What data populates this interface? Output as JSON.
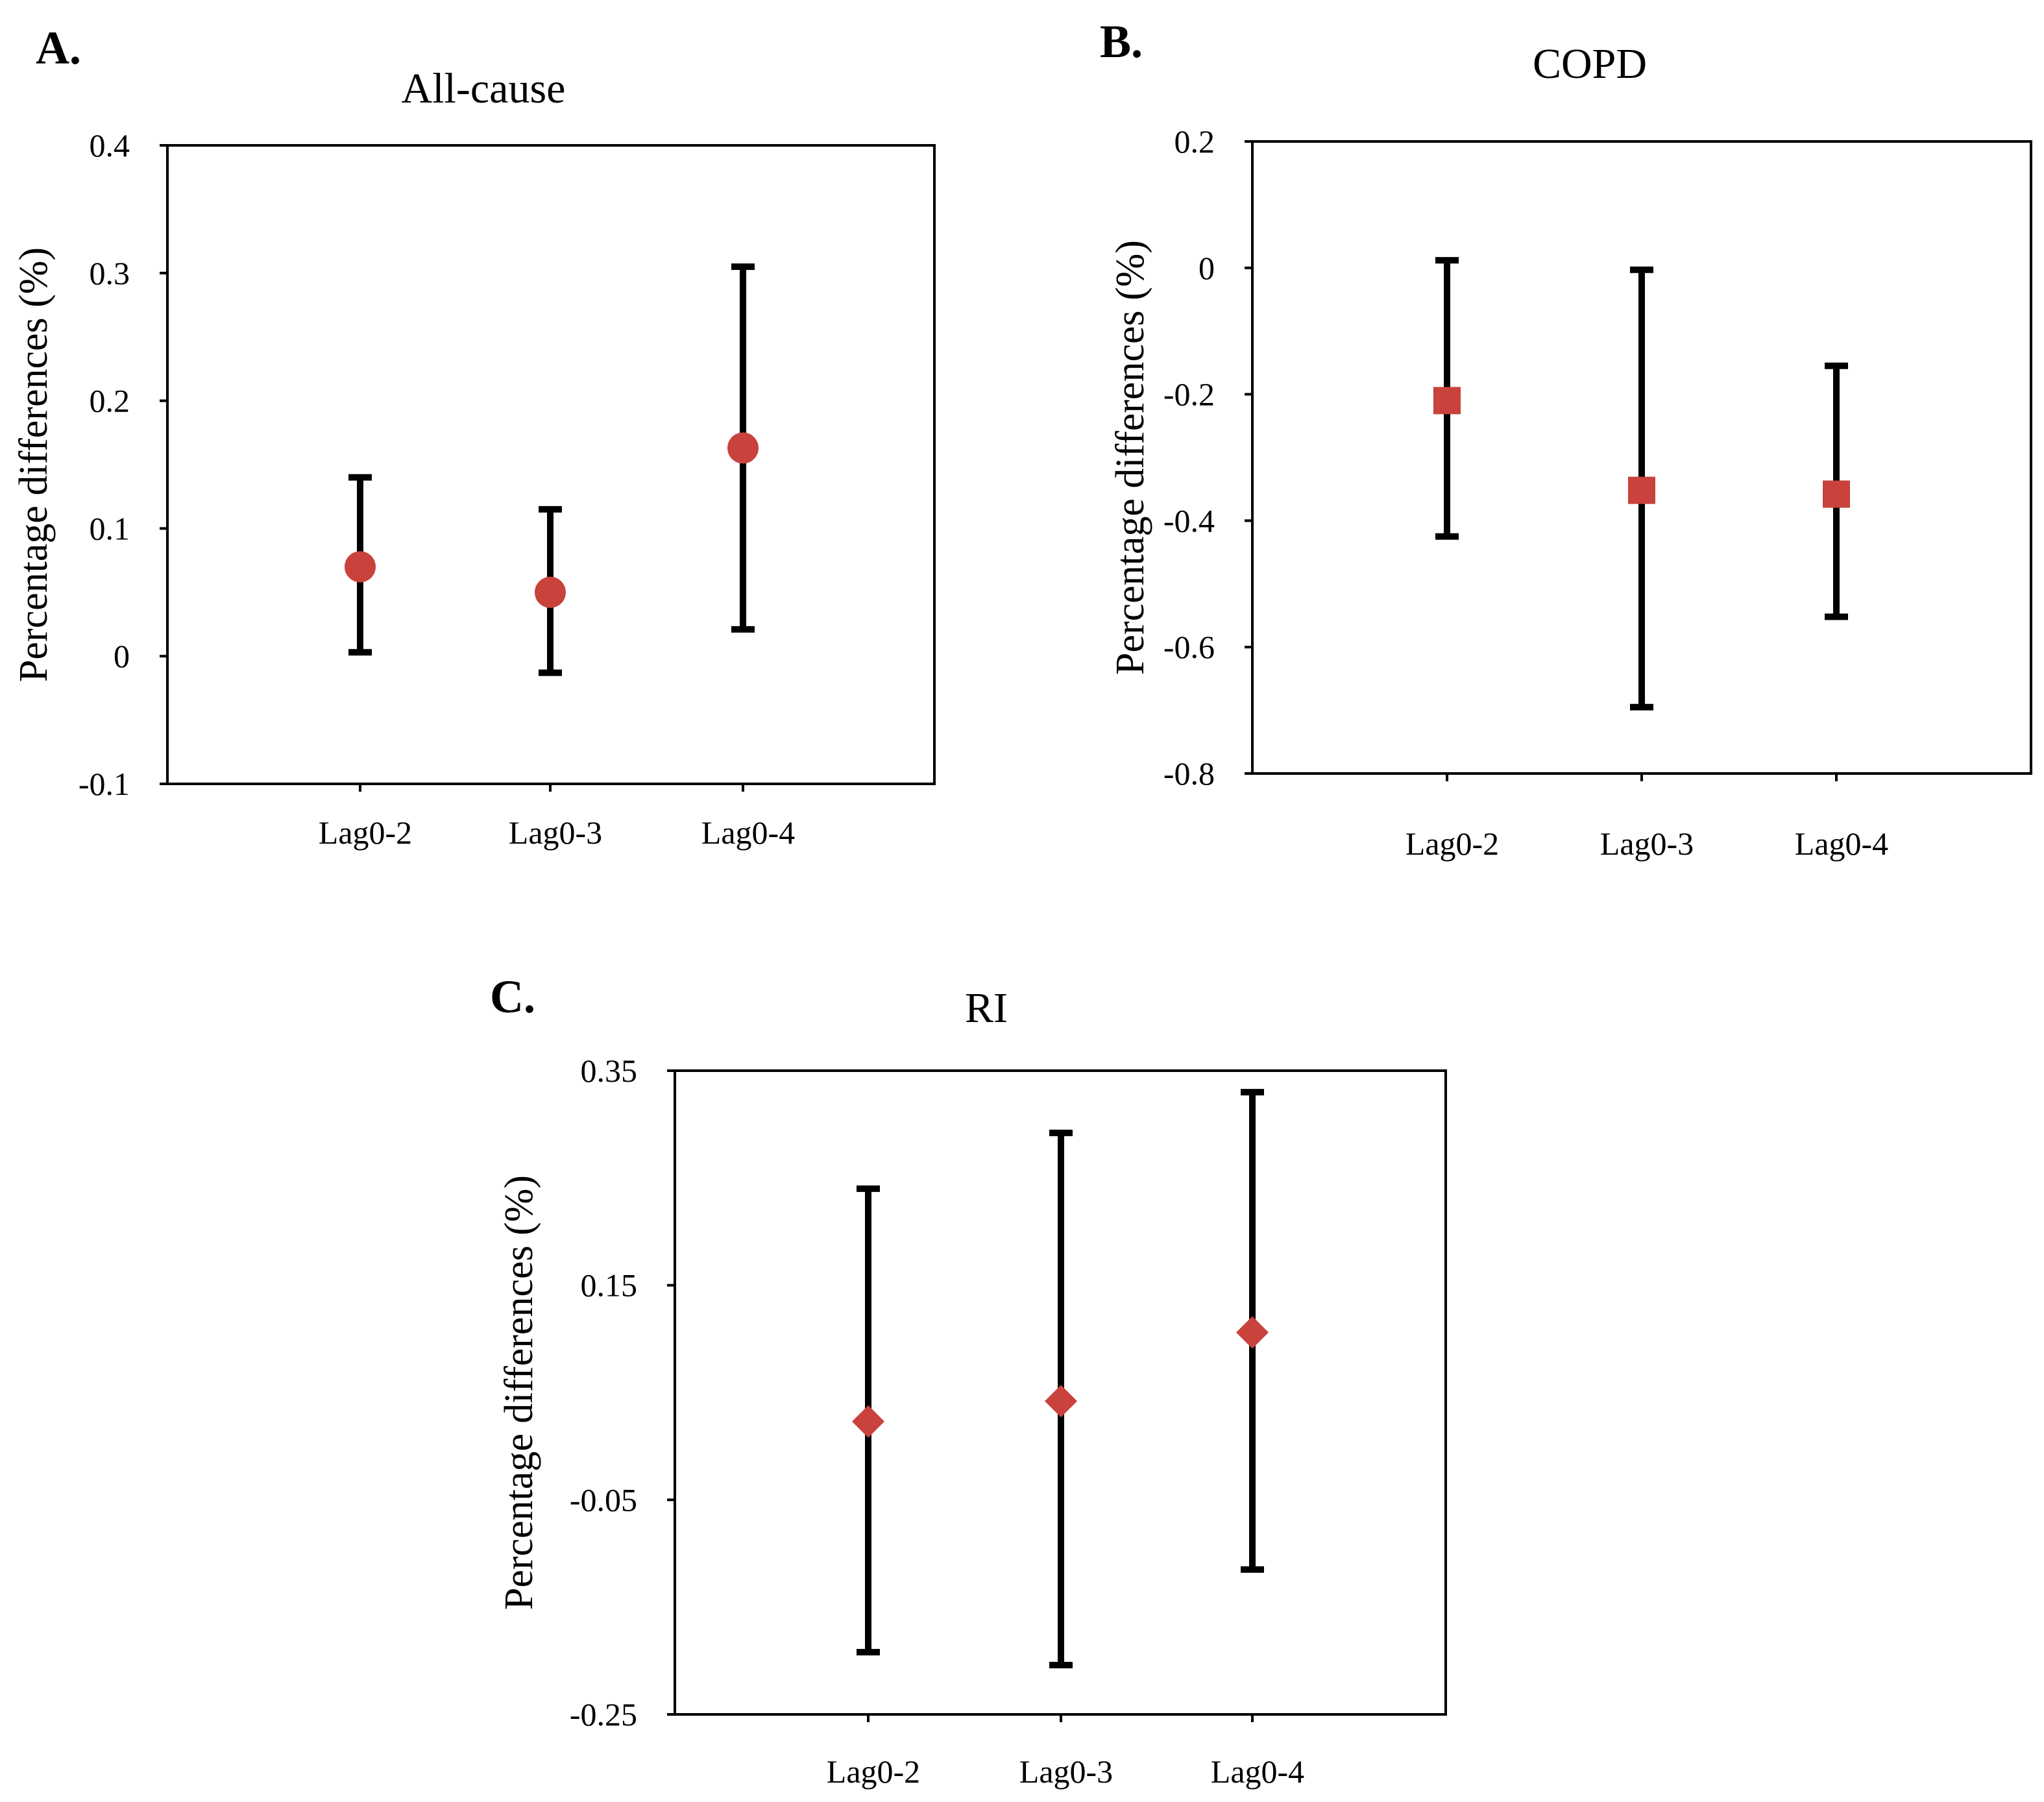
{
  "chart_data": [
    {
      "panel": "A.",
      "type": "errorbar",
      "title": "All-cause",
      "ylabel": "Percentage differences (%)",
      "xlabel": "",
      "categories": [
        "Lag0-2",
        "Lag0-3",
        "Lag0-4"
      ],
      "estimates": [
        0.07,
        0.05,
        0.163
      ],
      "lower": [
        0.003,
        -0.013,
        0.021
      ],
      "upper": [
        0.14,
        0.115,
        0.305
      ],
      "ylim": [
        -0.1,
        0.4
      ],
      "yticks": [
        -0.1,
        0,
        0.1,
        0.2,
        0.3,
        0.4
      ],
      "ytick_labels": [
        "-0.1",
        "0",
        "0.1",
        "0.2",
        "0.3",
        "0.4"
      ],
      "marker": "circle",
      "marker_color": "#C9423C"
    },
    {
      "panel": "B.",
      "type": "errorbar",
      "title": "COPD",
      "ylabel": "Percentage differences (%)",
      "xlabel": "",
      "categories": [
        "Lag0-2",
        "Lag0-3",
        "Lag0-4"
      ],
      "estimates": [
        -0.21,
        -0.352,
        -0.358
      ],
      "lower": [
        -0.425,
        -0.695,
        -0.552
      ],
      "upper": [
        0.012,
        -0.003,
        -0.155
      ],
      "ylim": [
        -0.8,
        0.2
      ],
      "yticks": [
        -0.8,
        -0.6,
        -0.4,
        -0.2,
        0,
        0.2
      ],
      "ytick_labels": [
        "-0.8",
        "-0.6",
        "-0.4",
        "-0.2",
        "0",
        "0.2"
      ],
      "marker": "square",
      "marker_color": "#C9423C"
    },
    {
      "panel": "C.",
      "type": "errorbar",
      "title": "RI",
      "ylabel": "Percentage differences (%)",
      "xlabel": "",
      "categories": [
        "Lag0-2",
        "Lag0-3",
        "Lag0-4"
      ],
      "estimates": [
        0.023,
        0.042,
        0.106
      ],
      "lower": [
        -0.192,
        -0.204,
        -0.115
      ],
      "upper": [
        0.24,
        0.292,
        0.33
      ],
      "ylim": [
        -0.25,
        0.35
      ],
      "yticks": [
        -0.25,
        -0.05,
        0.15,
        0.35
      ],
      "ytick_labels": [
        "-0.25",
        "-0.05",
        "0.15",
        "0.35"
      ],
      "marker": "diamond",
      "marker_color": "#C9423C"
    }
  ]
}
